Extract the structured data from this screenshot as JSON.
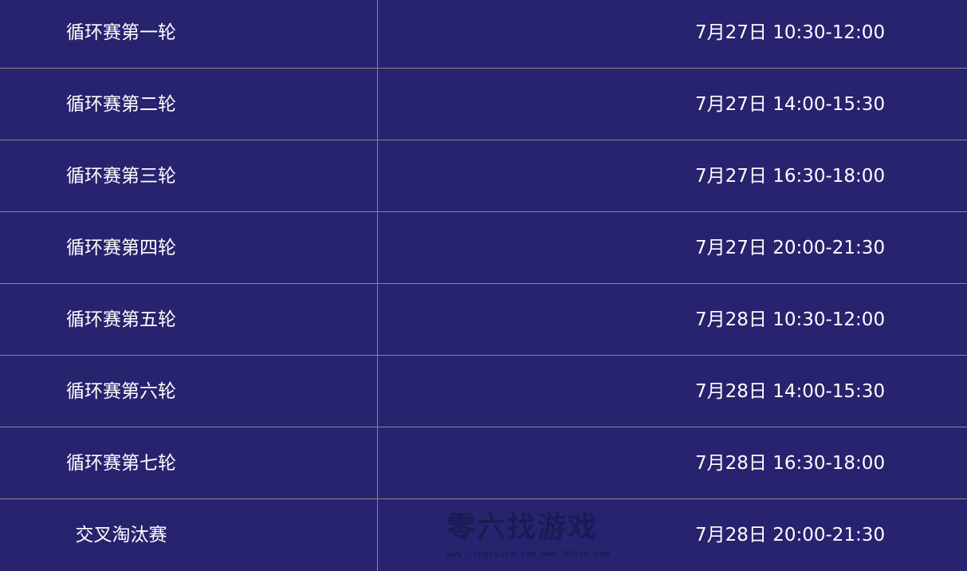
{
  "schedule": [
    {
      "stage": "循环赛第一轮",
      "time": "7月27日 10:30-12:00"
    },
    {
      "stage": "循环赛第二轮",
      "time": "7月27日 14:00-15:30"
    },
    {
      "stage": "循环赛第三轮",
      "time": "7月27日 16:30-18:00"
    },
    {
      "stage": "循环赛第四轮",
      "time": "7月27日 20:00-21:30"
    },
    {
      "stage": "循环赛第五轮",
      "time": "7月28日 10:30-12:00"
    },
    {
      "stage": "循环赛第六轮",
      "time": "7月28日 14:00-15:30"
    },
    {
      "stage": "循环赛第七轮",
      "time": "7月28日 16:30-18:00"
    },
    {
      "stage": "交叉淘汰赛",
      "time": "7月28日 20:00-21:30"
    }
  ],
  "watermark": {
    "text": "零六找游戏",
    "urls": "www.lingliuyx.com   www.06zyx.com"
  },
  "colors": {
    "background": "#27236f",
    "grid": "#8a8a7a",
    "text": "#ffffff"
  }
}
